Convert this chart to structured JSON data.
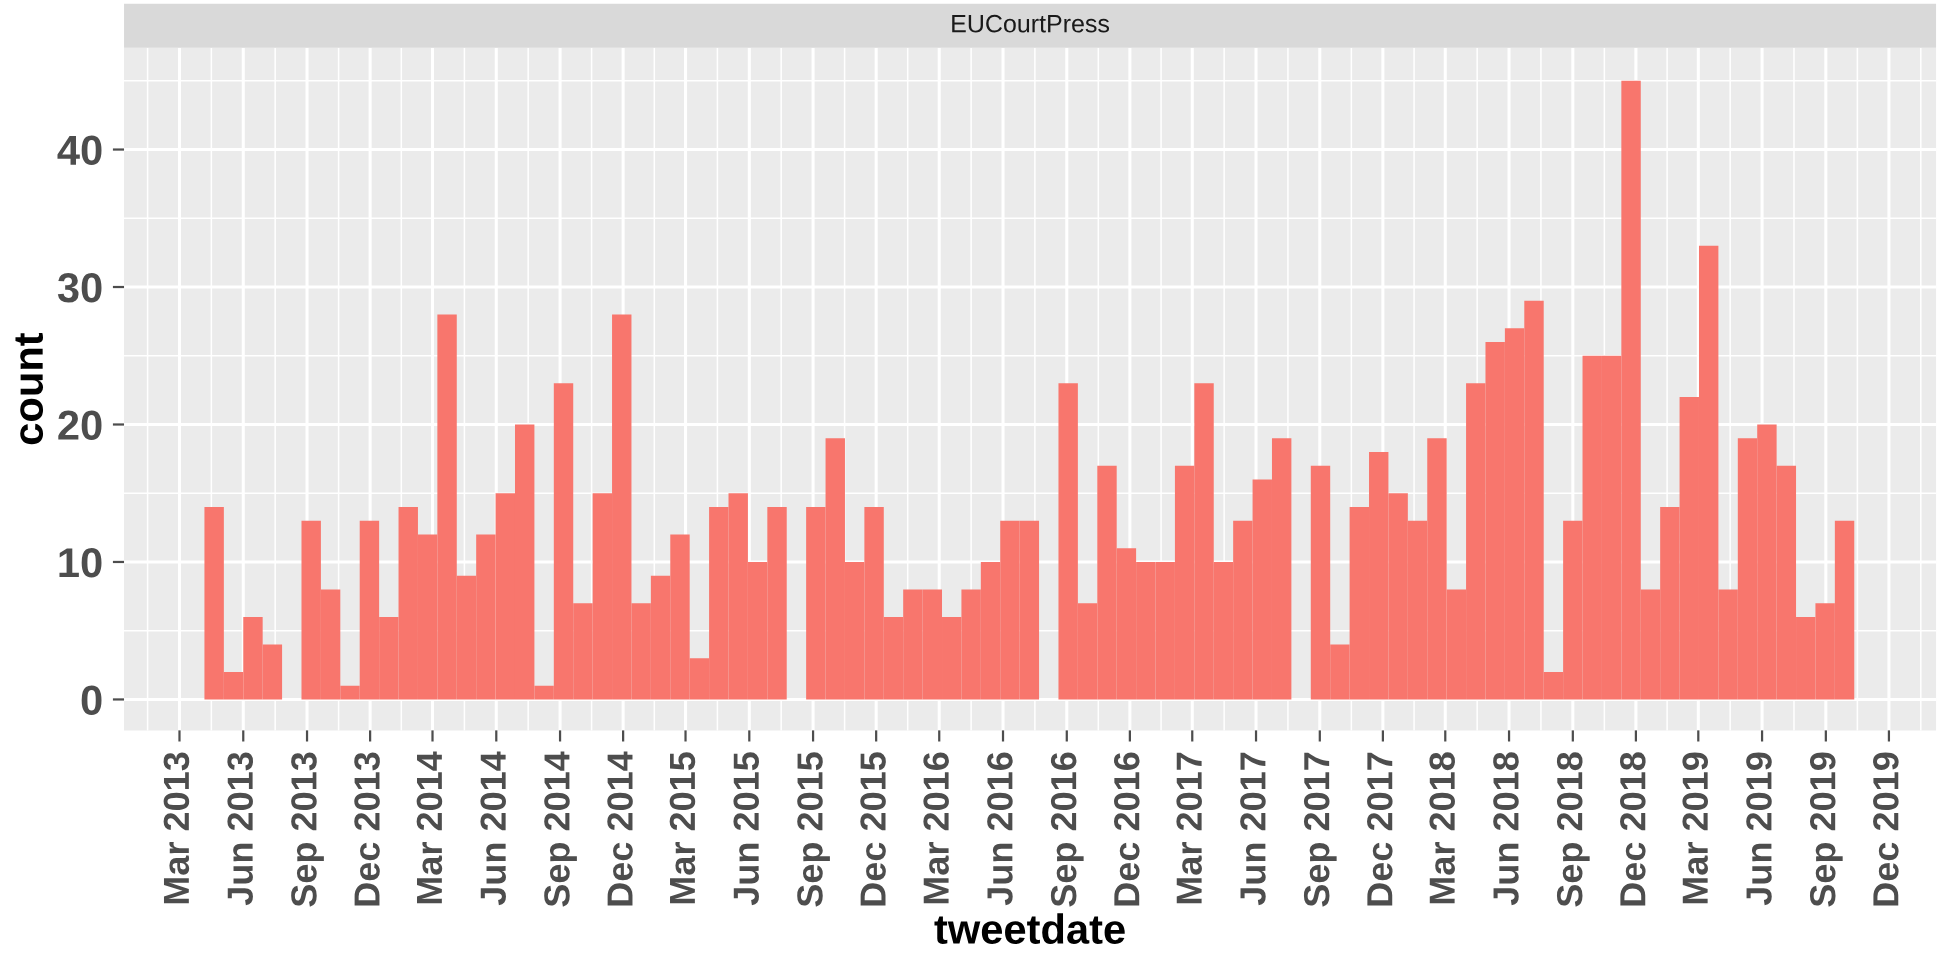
{
  "chart_data": {
    "type": "histogram",
    "title": "EUCourtPress",
    "xlabel": "tweetdate",
    "ylabel": "count",
    "color": "#f8766d",
    "bins": [
      "2013-04-06",
      "2013-05-04",
      "2013-06-01",
      "2013-06-29",
      "2013-07-27",
      "2013-08-24",
      "2013-09-21",
      "2013-10-19",
      "2013-11-16",
      "2013-12-14",
      "2014-01-11",
      "2014-02-08",
      "2014-03-08",
      "2014-04-05",
      "2014-05-03",
      "2014-05-31",
      "2014-06-28",
      "2014-07-26",
      "2014-08-23",
      "2014-09-20",
      "2014-10-18",
      "2014-11-15",
      "2014-12-13",
      "2015-01-10",
      "2015-02-07",
      "2015-03-07",
      "2015-04-04",
      "2015-05-02",
      "2015-05-30",
      "2015-06-27",
      "2015-07-25",
      "2015-08-22",
      "2015-09-19",
      "2015-10-17",
      "2015-11-14",
      "2015-12-12",
      "2016-01-09",
      "2016-02-06",
      "2016-03-05",
      "2016-04-02",
      "2016-04-30",
      "2016-05-28",
      "2016-06-25",
      "2016-07-23",
      "2016-08-20",
      "2016-09-17",
      "2016-10-15",
      "2016-11-12",
      "2016-12-10",
      "2017-01-07",
      "2017-02-04",
      "2017-03-04",
      "2017-04-01",
      "2017-04-29",
      "2017-05-27",
      "2017-06-24",
      "2017-07-22",
      "2017-08-19",
      "2017-09-16",
      "2017-10-14",
      "2017-11-11",
      "2017-12-09",
      "2018-01-06",
      "2018-02-03",
      "2018-03-03",
      "2018-03-31",
      "2018-04-28",
      "2018-05-26",
      "2018-06-23",
      "2018-07-21",
      "2018-08-18",
      "2018-09-15",
      "2018-10-13",
      "2018-11-10",
      "2018-12-08",
      "2019-01-05",
      "2019-02-02",
      "2019-03-02",
      "2019-03-30",
      "2019-04-27",
      "2019-05-25",
      "2019-06-22",
      "2019-07-20",
      "2019-08-17",
      "2019-09-14",
      "2019-10-12"
    ],
    "values": [
      14,
      2,
      6,
      4,
      0,
      13,
      8,
      1,
      13,
      6,
      14,
      12,
      28,
      9,
      12,
      15,
      20,
      1,
      23,
      7,
      15,
      28,
      7,
      9,
      12,
      3,
      14,
      15,
      10,
      14,
      0,
      14,
      19,
      10,
      14,
      6,
      8,
      8,
      6,
      8,
      10,
      13,
      13,
      0,
      23,
      7,
      17,
      11,
      10,
      10,
      17,
      23,
      10,
      13,
      16,
      19,
      0,
      17,
      4,
      14,
      18,
      15,
      13,
      19,
      8,
      23,
      26,
      27,
      29,
      2,
      13,
      25,
      25,
      45,
      8,
      14,
      22,
      33,
      8,
      19,
      20,
      17,
      6,
      7,
      13
    ],
    "xlim": [
      "2012-12-11",
      "2020-02-07"
    ],
    "xticks": [
      {
        "value": "2013-03-01",
        "label": "Mar 2013"
      },
      {
        "value": "2013-06-01",
        "label": "Jun 2013"
      },
      {
        "value": "2013-09-01",
        "label": "Sep 2013"
      },
      {
        "value": "2013-12-01",
        "label": "Dec 2013"
      },
      {
        "value": "2014-03-01",
        "label": "Mar 2014"
      },
      {
        "value": "2014-06-01",
        "label": "Jun 2014"
      },
      {
        "value": "2014-09-01",
        "label": "Sep 2014"
      },
      {
        "value": "2014-12-01",
        "label": "Dec 2014"
      },
      {
        "value": "2015-03-01",
        "label": "Mar 2015"
      },
      {
        "value": "2015-06-01",
        "label": "Jun 2015"
      },
      {
        "value": "2015-09-01",
        "label": "Sep 2015"
      },
      {
        "value": "2015-12-01",
        "label": "Dec 2015"
      },
      {
        "value": "2016-03-01",
        "label": "Mar 2016"
      },
      {
        "value": "2016-06-01",
        "label": "Jun 2016"
      },
      {
        "value": "2016-09-01",
        "label": "Sep 2016"
      },
      {
        "value": "2016-12-01",
        "label": "Dec 2016"
      },
      {
        "value": "2017-03-01",
        "label": "Mar 2017"
      },
      {
        "value": "2017-06-01",
        "label": "Jun 2017"
      },
      {
        "value": "2017-09-01",
        "label": "Sep 2017"
      },
      {
        "value": "2017-12-01",
        "label": "Dec 2017"
      },
      {
        "value": "2018-03-01",
        "label": "Mar 2018"
      },
      {
        "value": "2018-06-01",
        "label": "Jun 2018"
      },
      {
        "value": "2018-09-01",
        "label": "Sep 2018"
      },
      {
        "value": "2018-12-01",
        "label": "Dec 2018"
      },
      {
        "value": "2019-03-01",
        "label": "Mar 2019"
      },
      {
        "value": "2019-06-01",
        "label": "Jun 2019"
      },
      {
        "value": "2019-09-01",
        "label": "Sep 2019"
      },
      {
        "value": "2019-12-01",
        "label": "Dec 2019"
      }
    ],
    "ylim": [
      -2.25,
      47.4
    ],
    "yticks": [
      0,
      10,
      20,
      30,
      40
    ],
    "grid": true
  }
}
